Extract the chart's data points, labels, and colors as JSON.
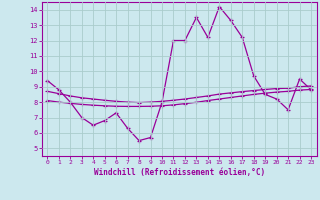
{
  "title": "",
  "xlabel": "Windchill (Refroidissement éolien,°C)",
  "ylabel": "",
  "background_color": "#cce8ee",
  "grid_color": "#aacccc",
  "line_color": "#990099",
  "spine_color": "#990099",
  "xlim": [
    -0.5,
    23.5
  ],
  "ylim": [
    4.5,
    14.5
  ],
  "xticks": [
    0,
    1,
    2,
    3,
    4,
    5,
    6,
    7,
    8,
    9,
    10,
    11,
    12,
    13,
    14,
    15,
    16,
    17,
    18,
    19,
    20,
    21,
    22,
    23
  ],
  "yticks": [
    5,
    6,
    7,
    8,
    9,
    10,
    11,
    12,
    13,
    14
  ],
  "main_y": [
    9.4,
    8.8,
    8.0,
    7.0,
    6.5,
    6.8,
    7.3,
    6.3,
    5.5,
    5.7,
    8.0,
    12.0,
    12.0,
    13.5,
    12.2,
    14.2,
    13.3,
    12.2,
    9.7,
    8.5,
    8.2,
    7.5,
    9.5,
    8.8
  ],
  "linear1_y": [
    8.7,
    8.55,
    8.4,
    8.28,
    8.2,
    8.12,
    8.05,
    8.0,
    7.97,
    8.0,
    8.05,
    8.12,
    8.2,
    8.3,
    8.4,
    8.52,
    8.6,
    8.68,
    8.75,
    8.82,
    8.88,
    8.9,
    9.0,
    9.05
  ],
  "linear2_y": [
    8.1,
    8.0,
    7.92,
    7.85,
    7.8,
    7.76,
    7.73,
    7.72,
    7.72,
    7.73,
    7.76,
    7.82,
    7.9,
    7.99,
    8.1,
    8.2,
    8.3,
    8.4,
    8.5,
    8.58,
    8.65,
    8.7,
    8.78,
    8.82
  ]
}
